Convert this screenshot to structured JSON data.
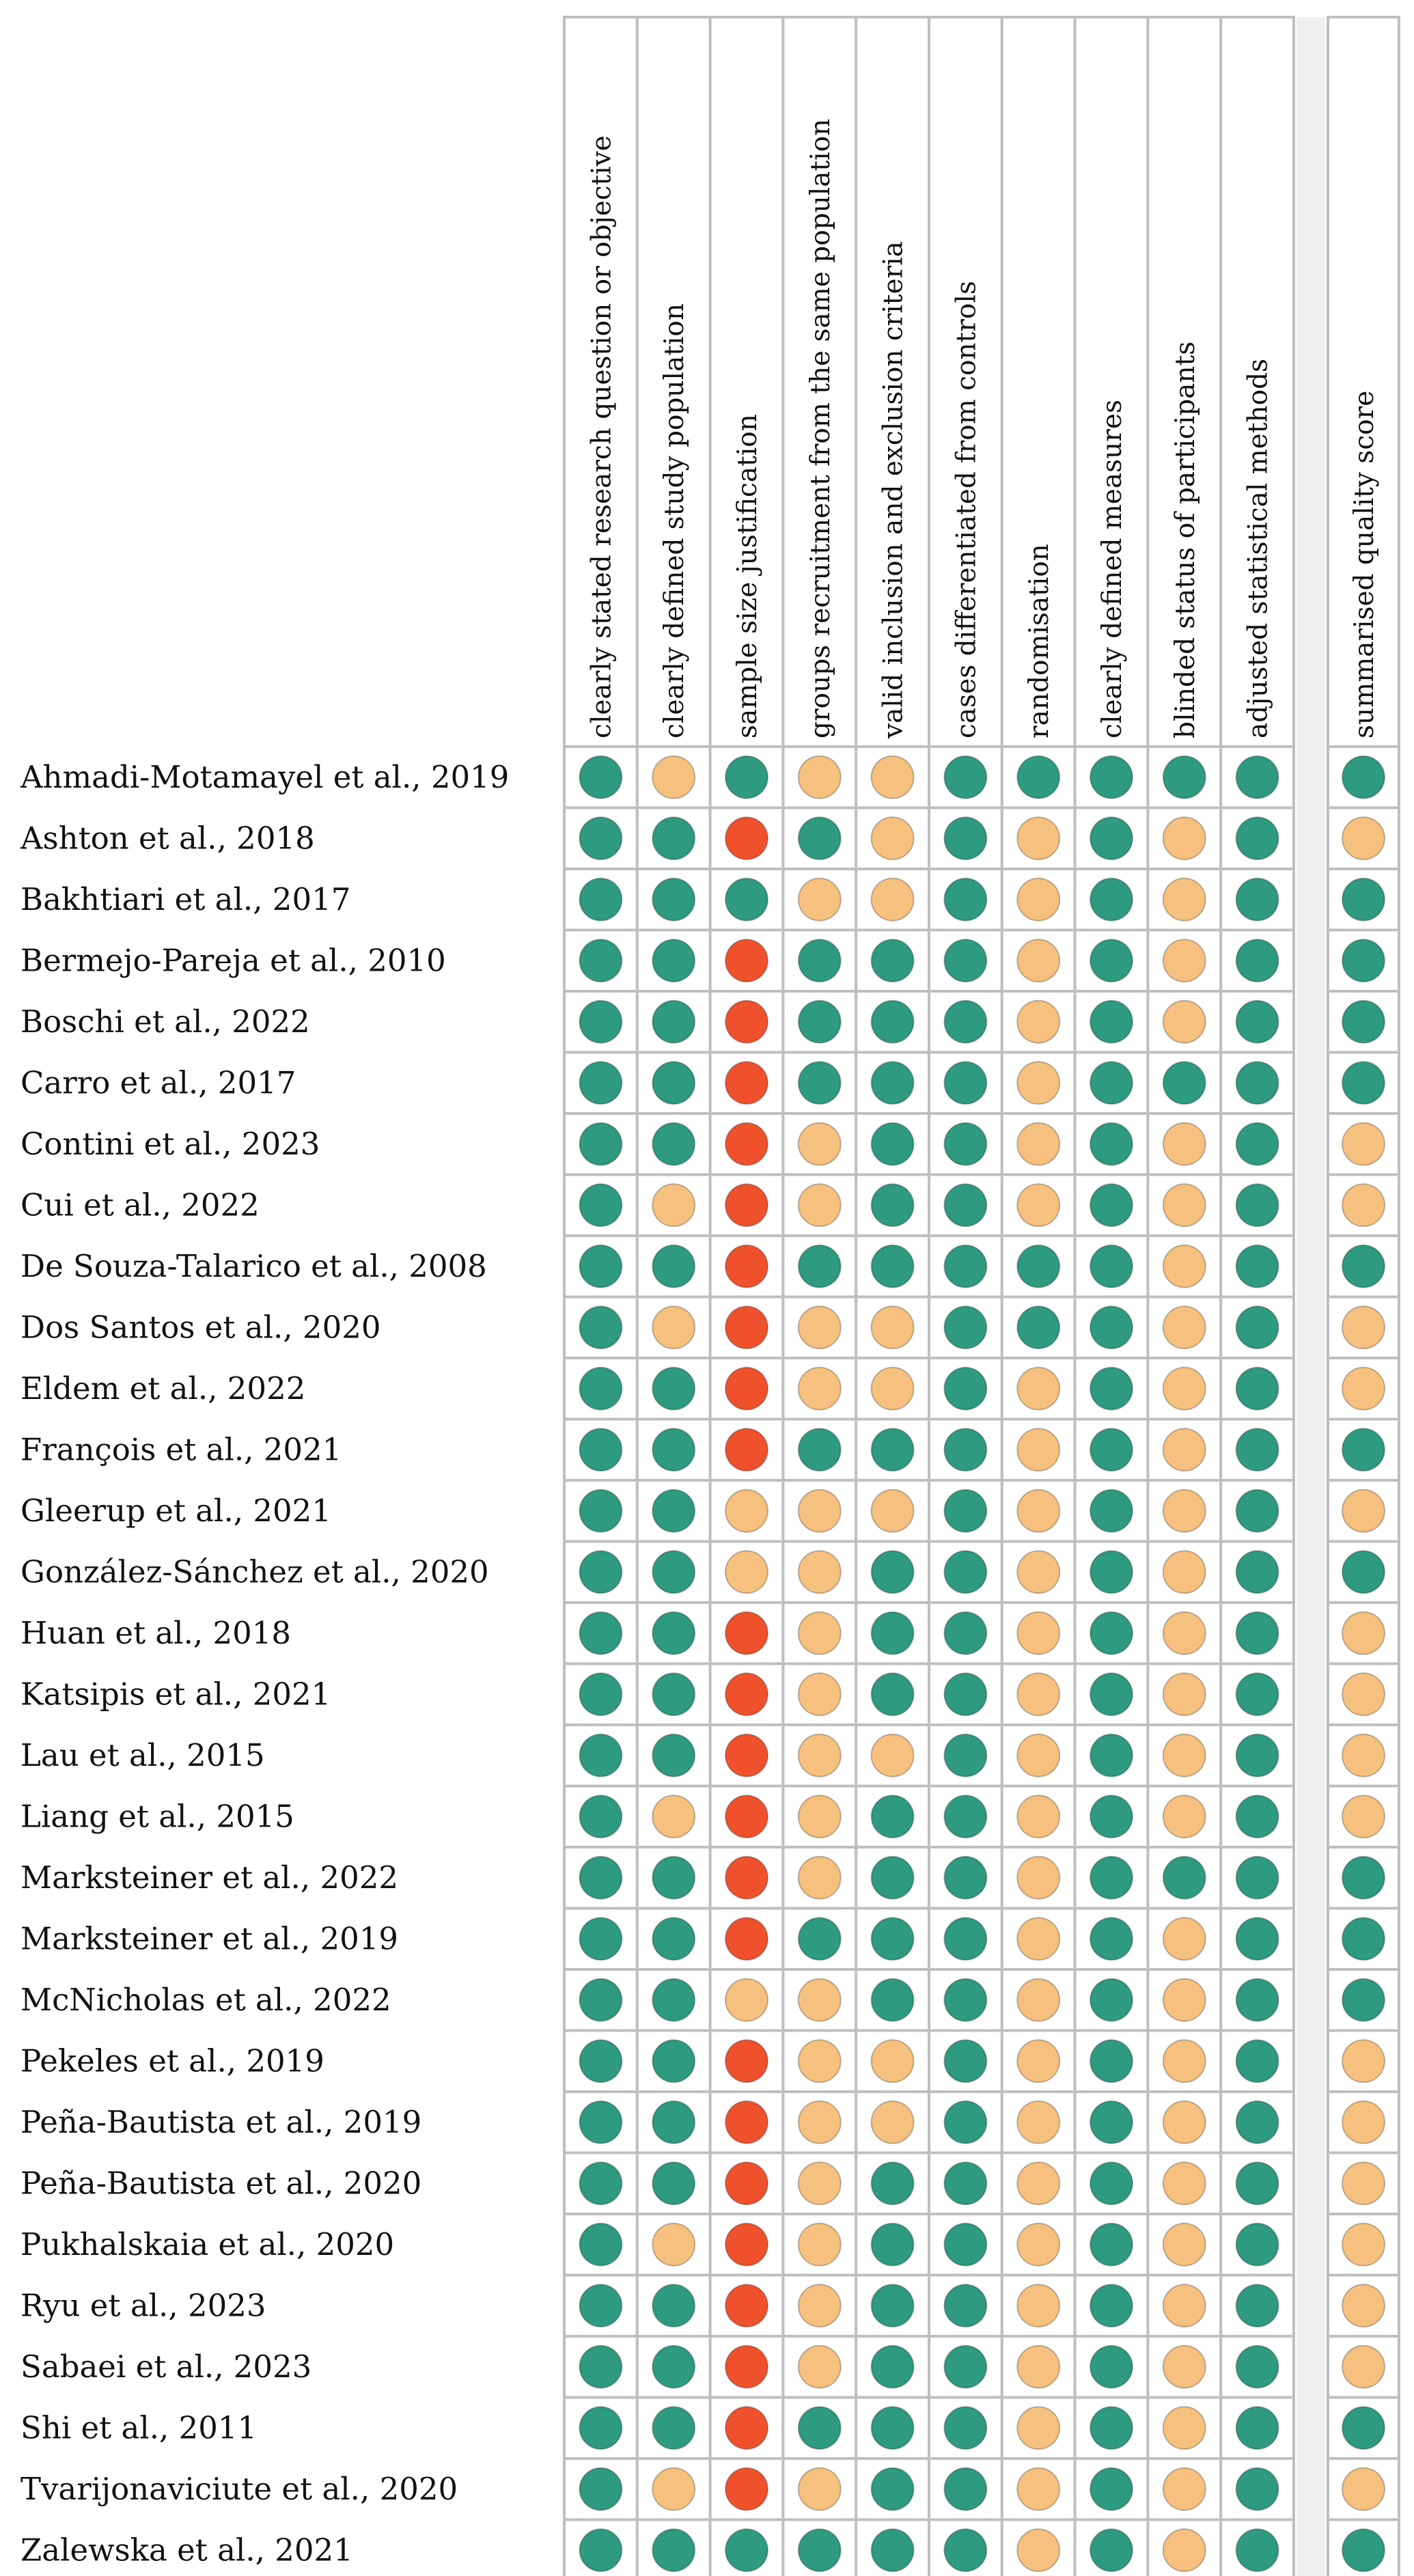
{
  "chart_data": {
    "type": "table",
    "columns": [
      "clearly stated research question or objective",
      "clearly defined study population",
      "sample size justification",
      "groups recruitment from the same population",
      "valid inclusion and exclusion criteria",
      "cases differentiated from controls",
      "randomisation",
      "clearly defined measures",
      "blinded status of participants",
      "adjusted statistical methods"
    ],
    "summary_column": "summarised quality score",
    "colors": {
      "G": "#2e9a7f",
      "Y": "#f6c07e",
      "R": "#f0512d",
      "cell_border": "#bfbfbf",
      "cell_bg": "#ffffff",
      "gap": "#efefef"
    },
    "studies": [
      {
        "name": "Ahmadi-Motamayel et al., 2019",
        "ratings": [
          "G",
          "Y",
          "G",
          "Y",
          "Y",
          "G",
          "G",
          "G",
          "G",
          "G"
        ],
        "summary": "G"
      },
      {
        "name": "Ashton et al., 2018",
        "ratings": [
          "G",
          "G",
          "R",
          "G",
          "Y",
          "G",
          "Y",
          "G",
          "Y",
          "G"
        ],
        "summary": "Y"
      },
      {
        "name": "Bakhtiari et al., 2017",
        "ratings": [
          "G",
          "G",
          "G",
          "Y",
          "Y",
          "G",
          "Y",
          "G",
          "Y",
          "G"
        ],
        "summary": "G"
      },
      {
        "name": "Bermejo-Pareja et al., 2010",
        "ratings": [
          "G",
          "G",
          "R",
          "G",
          "G",
          "G",
          "Y",
          "G",
          "Y",
          "G"
        ],
        "summary": "G"
      },
      {
        "name": "Boschi et al., 2022",
        "ratings": [
          "G",
          "G",
          "R",
          "G",
          "G",
          "G",
          "Y",
          "G",
          "Y",
          "G"
        ],
        "summary": "G"
      },
      {
        "name": "Carro et al., 2017",
        "ratings": [
          "G",
          "G",
          "R",
          "G",
          "G",
          "G",
          "Y",
          "G",
          "G",
          "G"
        ],
        "summary": "G"
      },
      {
        "name": "Contini et al., 2023",
        "ratings": [
          "G",
          "G",
          "R",
          "Y",
          "G",
          "G",
          "Y",
          "G",
          "Y",
          "G"
        ],
        "summary": "Y"
      },
      {
        "name": "Cui et al., 2022",
        "ratings": [
          "G",
          "Y",
          "R",
          "Y",
          "G",
          "G",
          "Y",
          "G",
          "Y",
          "G"
        ],
        "summary": "Y"
      },
      {
        "name": "De Souza-Talarico et al., 2008",
        "ratings": [
          "G",
          "G",
          "R",
          "G",
          "G",
          "G",
          "G",
          "G",
          "Y",
          "G"
        ],
        "summary": "G"
      },
      {
        "name": "Dos Santos et al., 2020",
        "ratings": [
          "G",
          "Y",
          "R",
          "Y",
          "Y",
          "G",
          "G",
          "G",
          "Y",
          "G"
        ],
        "summary": "Y"
      },
      {
        "name": "Eldem et al., 2022",
        "ratings": [
          "G",
          "G",
          "R",
          "Y",
          "Y",
          "G",
          "Y",
          "G",
          "Y",
          "G"
        ],
        "summary": "Y"
      },
      {
        "name": "François et al., 2021",
        "ratings": [
          "G",
          "G",
          "R",
          "G",
          "G",
          "G",
          "Y",
          "G",
          "Y",
          "G"
        ],
        "summary": "G"
      },
      {
        "name": "Gleerup et al., 2021",
        "ratings": [
          "G",
          "G",
          "Y",
          "Y",
          "Y",
          "G",
          "Y",
          "G",
          "Y",
          "G"
        ],
        "summary": "Y"
      },
      {
        "name": "González-Sánchez et al., 2020",
        "ratings": [
          "G",
          "G",
          "Y",
          "Y",
          "G",
          "G",
          "Y",
          "G",
          "Y",
          "G"
        ],
        "summary": "G"
      },
      {
        "name": "Huan et al., 2018",
        "ratings": [
          "G",
          "G",
          "R",
          "Y",
          "G",
          "G",
          "Y",
          "G",
          "Y",
          "G"
        ],
        "summary": "Y"
      },
      {
        "name": "Katsipis et al., 2021",
        "ratings": [
          "G",
          "G",
          "R",
          "Y",
          "G",
          "G",
          "Y",
          "G",
          "Y",
          "G"
        ],
        "summary": "Y"
      },
      {
        "name": "Lau et al., 2015",
        "ratings": [
          "G",
          "G",
          "R",
          "Y",
          "Y",
          "G",
          "Y",
          "G",
          "Y",
          "G"
        ],
        "summary": "Y"
      },
      {
        "name": "Liang et al., 2015",
        "ratings": [
          "G",
          "Y",
          "R",
          "Y",
          "G",
          "G",
          "Y",
          "G",
          "Y",
          "G"
        ],
        "summary": "Y"
      },
      {
        "name": "Marksteiner et al., 2022",
        "ratings": [
          "G",
          "G",
          "R",
          "Y",
          "G",
          "G",
          "Y",
          "G",
          "G",
          "G"
        ],
        "summary": "G"
      },
      {
        "name": "Marksteiner et al., 2019",
        "ratings": [
          "G",
          "G",
          "R",
          "G",
          "G",
          "G",
          "Y",
          "G",
          "Y",
          "G"
        ],
        "summary": "G"
      },
      {
        "name": "McNicholas et al., 2022",
        "ratings": [
          "G",
          "G",
          "Y",
          "Y",
          "G",
          "G",
          "Y",
          "G",
          "Y",
          "G"
        ],
        "summary": "G"
      },
      {
        "name": "Pekeles et al., 2019",
        "ratings": [
          "G",
          "G",
          "R",
          "Y",
          "Y",
          "G",
          "Y",
          "G",
          "Y",
          "G"
        ],
        "summary": "Y"
      },
      {
        "name": "Peña-Bautista et al., 2019",
        "ratings": [
          "G",
          "G",
          "R",
          "Y",
          "Y",
          "G",
          "Y",
          "G",
          "Y",
          "G"
        ],
        "summary": "Y"
      },
      {
        "name": "Peña-Bautista et al., 2020",
        "ratings": [
          "G",
          "G",
          "R",
          "Y",
          "G",
          "G",
          "Y",
          "G",
          "Y",
          "G"
        ],
        "summary": "Y"
      },
      {
        "name": "Pukhalskaia et al., 2020",
        "ratings": [
          "G",
          "Y",
          "R",
          "Y",
          "G",
          "G",
          "Y",
          "G",
          "Y",
          "G"
        ],
        "summary": "Y"
      },
      {
        "name": "Ryu et al., 2023",
        "ratings": [
          "G",
          "G",
          "R",
          "Y",
          "G",
          "G",
          "Y",
          "G",
          "Y",
          "G"
        ],
        "summary": "Y"
      },
      {
        "name": "Sabaei et al., 2023",
        "ratings": [
          "G",
          "G",
          "R",
          "Y",
          "G",
          "G",
          "Y",
          "G",
          "Y",
          "G"
        ],
        "summary": "Y"
      },
      {
        "name": "Shi et al., 2011",
        "ratings": [
          "G",
          "G",
          "R",
          "G",
          "G",
          "G",
          "Y",
          "G",
          "Y",
          "G"
        ],
        "summary": "G"
      },
      {
        "name": "Tvarijonaviciute et al., 2020",
        "ratings": [
          "G",
          "Y",
          "R",
          "Y",
          "G",
          "G",
          "Y",
          "G",
          "Y",
          "G"
        ],
        "summary": "Y"
      },
      {
        "name": "Zalewska et al., 2021",
        "ratings": [
          "G",
          "G",
          "G",
          "G",
          "G",
          "G",
          "Y",
          "G",
          "Y",
          "G"
        ],
        "summary": "G"
      }
    ]
  }
}
